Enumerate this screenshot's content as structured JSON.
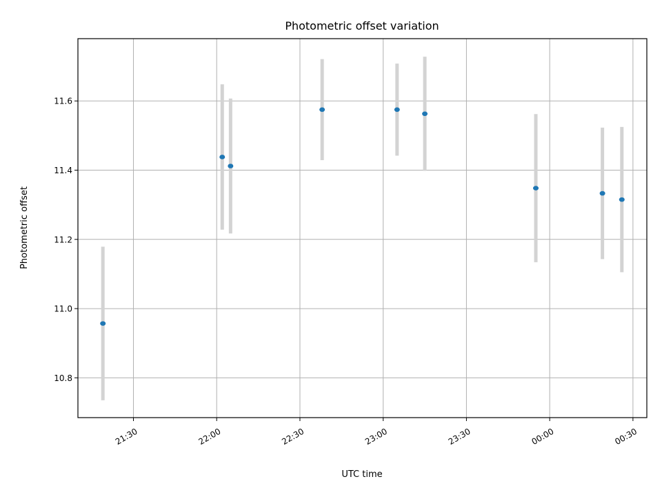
{
  "chart_data": {
    "type": "scatter",
    "title": "Photometric offset variation",
    "xlabel": "UTC time",
    "ylabel": "Photometric offset",
    "grid": true,
    "xlim": [
      "21:10",
      "00:35"
    ],
    "ylim": [
      10.685,
      11.78
    ],
    "x_ticks": [
      "21:30",
      "22:00",
      "22:30",
      "23:00",
      "23:30",
      "00:00",
      "00:30"
    ],
    "y_ticks": [
      "10.8",
      "11.0",
      "11.2",
      "11.4",
      "11.6"
    ],
    "points": [
      {
        "x": "21:19",
        "y": 10.957,
        "err": 0.222
      },
      {
        "x": "22:02",
        "y": 11.438,
        "err": 0.21
      },
      {
        "x": "22:05",
        "y": 11.412,
        "err": 0.195
      },
      {
        "x": "22:38",
        "y": 11.575,
        "err": 0.146
      },
      {
        "x": "23:05",
        "y": 11.575,
        "err": 0.133
      },
      {
        "x": "23:15",
        "y": 11.563,
        "err": 0.165
      },
      {
        "x": "23:55",
        "y": 11.348,
        "err": 0.214
      },
      {
        "x": "00:19",
        "y": 11.333,
        "err": 0.19
      },
      {
        "x": "00:26",
        "y": 11.315,
        "err": 0.21
      }
    ],
    "colors": {
      "point": "#1f77b4",
      "errorbar": "#d3d3d3",
      "grid": "#b0b0b0"
    }
  }
}
